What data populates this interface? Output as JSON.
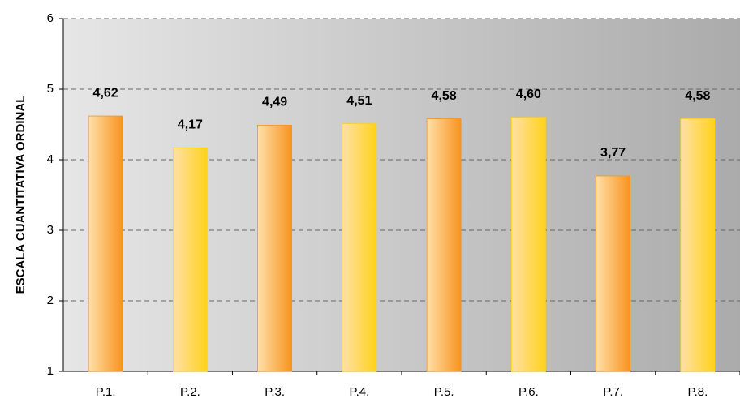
{
  "chart_data": {
    "type": "bar",
    "y_label": "ESCALA CUANTITATIVA ORDINAL",
    "categories": [
      "P.1.",
      "P.2.",
      "P.3.",
      "P.4.",
      "P.5.",
      "P.6.",
      "P.7.",
      "P.8."
    ],
    "values": [
      4.62,
      4.17,
      4.49,
      4.51,
      4.58,
      4.6,
      3.77,
      4.58
    ],
    "value_labels": [
      "4,62",
      "4,17",
      "4,49",
      "4,51",
      "4,58",
      "4,60",
      "3,77",
      "4,58"
    ],
    "colors": [
      "#f7931e",
      "#ffd21a",
      "#f7931e",
      "#ffd21a",
      "#f7931e",
      "#ffd21a",
      "#f7931e",
      "#ffd21a"
    ],
    "ylim": [
      1,
      6
    ],
    "yticks": [
      1,
      2,
      3,
      4,
      5,
      6
    ],
    "grid": true
  }
}
